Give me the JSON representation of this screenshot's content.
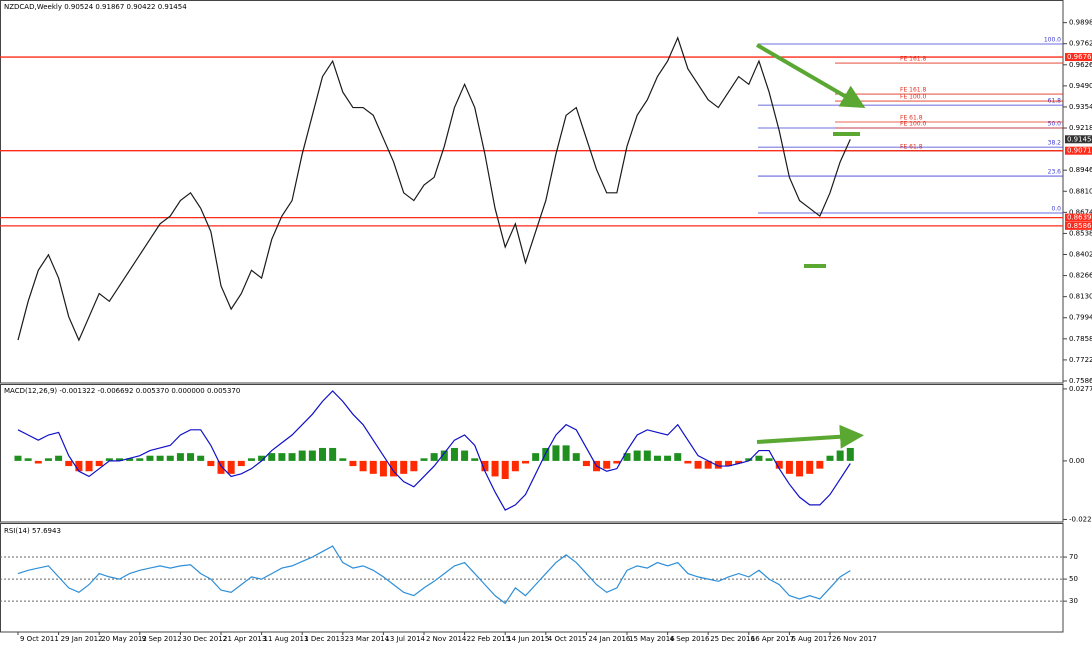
{
  "chart_data": [
    {
      "type": "line",
      "title": "NZDCAD,Weekly  0.90524 0.91867 0.90422 0.91454",
      "ylim": [
        0.7573,
        1.0044
      ],
      "yticks": [
        {
          "value": 0.9898,
          "label": "0.98980"
        },
        {
          "value": 0.9762,
          "label": "0.97620"
        },
        {
          "value": 0.9626,
          "label": "0.96260"
        },
        {
          "value": 0.949,
          "label": "0.94900"
        },
        {
          "value": 0.9354,
          "label": "0.93540"
        },
        {
          "value": 0.9218,
          "label": "0.92180"
        },
        {
          "value": 0.8946,
          "label": "0.89460"
        },
        {
          "value": 0.881,
          "label": "0.88100"
        },
        {
          "value": 0.8674,
          "label": "0.86740"
        },
        {
          "value": 0.8538,
          "label": "0.85380"
        },
        {
          "value": 0.8402,
          "label": "0.84020"
        },
        {
          "value": 0.8266,
          "label": "0.82660"
        },
        {
          "value": 0.813,
          "label": "0.81300"
        },
        {
          "value": 0.7994,
          "label": "0.79940"
        },
        {
          "value": 0.7858,
          "label": "0.78580"
        },
        {
          "value": 0.7722,
          "label": "0.77220"
        },
        {
          "value": 0.7586,
          "label": "0.75860"
        }
      ],
      "series": [
        {
          "color": "#1a1a1a",
          "values": [
            0.785,
            0.81,
            0.83,
            0.84,
            0.825,
            0.8,
            0.785,
            0.8,
            0.815,
            0.81,
            0.82,
            0.83,
            0.84,
            0.85,
            0.86,
            0.865,
            0.875,
            0.88,
            0.87,
            0.855,
            0.82,
            0.805,
            0.815,
            0.83,
            0.825,
            0.85,
            0.865,
            0.875,
            0.905,
            0.93,
            0.955,
            0.965,
            0.945,
            0.935,
            0.935,
            0.93,
            0.915,
            0.9,
            0.88,
            0.875,
            0.885,
            0.89,
            0.91,
            0.935,
            0.95,
            0.935,
            0.905,
            0.87,
            0.845,
            0.86,
            0.835,
            0.855,
            0.875,
            0.905,
            0.93,
            0.935,
            0.915,
            0.895,
            0.88,
            0.88,
            0.91,
            0.93,
            0.94,
            0.955,
            0.965,
            0.98,
            0.96,
            0.95,
            0.94,
            0.935,
            0.945,
            0.955,
            0.95,
            0.965,
            0.945,
            0.92,
            0.89,
            0.875,
            0.87,
            0.865,
            0.88,
            0.9,
            0.9145
          ]
        }
      ],
      "levels_color": "#ff2a1a",
      "levels": [
        {
          "value": 0.9676,
          "label": "0.96760"
        },
        {
          "value": 0.90717,
          "label": "0.90717"
        },
        {
          "value": 0.86399,
          "label": "0.86399"
        },
        {
          "value": 0.85868,
          "label": "0.85868"
        }
      ],
      "last_price": {
        "value": 0.91454,
        "label": "0.91454"
      },
      "fib_color": "#3b3bd6",
      "fib_levels": [
        {
          "value": 0.976,
          "label": "100.0"
        },
        {
          "value": 0.9366,
          "label": "61.8"
        },
        {
          "value": 0.9218,
          "label": "50.0"
        },
        {
          "value": 0.9095,
          "label": "38.2"
        },
        {
          "value": 0.8908,
          "label": "23.6"
        },
        {
          "value": 0.867,
          "label": "0.0"
        }
      ],
      "fe_color": "#e0301e",
      "fe_levels": [
        {
          "value": 0.9637,
          "label": "FE 161.8"
        },
        {
          "value": 0.9437,
          "label": "FE 161.8"
        },
        {
          "value": 0.9392,
          "label": "FE 100.0"
        },
        {
          "value": 0.9257,
          "label": "FE 61.8"
        },
        {
          "value": 0.9218,
          "label": "FE 100.0"
        },
        {
          "value": 0.907,
          "label": "FE 61.8"
        }
      ]
    },
    {
      "type": "bar",
      "title": "MACD(12,26,9) -0.001322 -0.006692 0.005370 0.000000 0.005370",
      "ylim": [
        -0.0236,
        0.0297
      ],
      "yticks": [
        0.027799,
        {
          "value": 0,
          "label": "0.00"
        },
        -0.022613
      ],
      "series": [
        {
          "color": "#1f8f1f",
          "negative_color": "#ff2a00",
          "values": [
            0.002,
            0.001,
            -0.001,
            0.001,
            0.002,
            -0.002,
            -0.004,
            -0.004,
            -0.002,
            0.001,
            0.001,
            0.001,
            0.001,
            0.002,
            0.002,
            0.002,
            0.003,
            0.003,
            0.002,
            -0.002,
            -0.005,
            -0.005,
            -0.002,
            0.001,
            0.002,
            0.003,
            0.003,
            0.003,
            0.004,
            0.004,
            0.005,
            0.005,
            0.001,
            -0.002,
            -0.004,
            -0.005,
            -0.006,
            -0.006,
            -0.005,
            -0.004,
            0.001,
            0.003,
            0.004,
            0.005,
            0.004,
            0.001,
            -0.004,
            -0.006,
            -0.007,
            -0.004,
            -0.001,
            0.003,
            0.005,
            0.006,
            0.006,
            0.003,
            -0.002,
            -0.004,
            -0.003,
            -0.001,
            0.003,
            0.004,
            0.004,
            0.002,
            0.002,
            0.003,
            -0.001,
            -0.003,
            -0.003,
            -0.003,
            -0.002,
            -0.001,
            0.001,
            0.002,
            0.001,
            -0.003,
            -0.005,
            -0.006,
            -0.005,
            -0.003,
            0.002,
            0.004,
            0.005
          ]
        },
        {
          "type": "line",
          "color": "#1010c8",
          "values": [
            0.012,
            0.01,
            0.008,
            0.01,
            0.011,
            0.002,
            -0.004,
            -0.006,
            -0.003,
            0,
            0,
            0.001,
            0.002,
            0.004,
            0.005,
            0.006,
            0.01,
            0.012,
            0.012,
            0.006,
            -0.002,
            -0.006,
            -0.005,
            -0.003,
            0,
            0.004,
            0.007,
            0.01,
            0.014,
            0.018,
            0.023,
            0.027,
            0.023,
            0.018,
            0.014,
            0.008,
            0.002,
            -0.004,
            -0.008,
            -0.01,
            -0.006,
            -0.002,
            0.003,
            0.008,
            0.01,
            0.006,
            -0.004,
            -0.012,
            -0.019,
            -0.017,
            -0.013,
            -0.005,
            0.003,
            0.01,
            0.014,
            0.012,
            0.005,
            -0.002,
            -0.004,
            -0.003,
            0.004,
            0.01,
            0.012,
            0.011,
            0.01,
            0.014,
            0.008,
            0.002,
            0,
            -0.002,
            -0.002,
            -0.001,
            0,
            0.004,
            0.004,
            -0.003,
            -0.009,
            -0.014,
            -0.017,
            -0.017,
            -0.013,
            -0.007,
            -0.001
          ]
        }
      ]
    },
    {
      "type": "line",
      "title": "RSI(14) 57.6943",
      "ylim": [
        2,
        100
      ],
      "yticks": [
        70,
        50,
        30
      ],
      "grid": true,
      "series": [
        {
          "color": "#2e8fd8",
          "values": [
            55,
            58,
            60,
            62,
            52,
            42,
            38,
            45,
            55,
            52,
            50,
            55,
            58,
            60,
            62,
            60,
            62,
            63,
            55,
            50,
            40,
            38,
            45,
            52,
            50,
            55,
            60,
            62,
            66,
            70,
            75,
            80,
            65,
            60,
            62,
            58,
            52,
            45,
            38,
            35,
            42,
            48,
            55,
            62,
            65,
            55,
            45,
            35,
            28,
            42,
            35,
            45,
            55,
            65,
            72,
            65,
            55,
            45,
            38,
            42,
            58,
            62,
            60,
            65,
            62,
            65,
            55,
            52,
            50,
            48,
            52,
            55,
            52,
            58,
            50,
            45,
            35,
            32,
            35,
            32,
            42,
            52,
            57.69
          ]
        }
      ],
      "categories": [
        "9 Oct 2011",
        null,
        null,
        null,
        "29 Jan 2012",
        null,
        null,
        null,
        "20 May 2012",
        null,
        null,
        null,
        "9 Sep 2012",
        null,
        null,
        null,
        "30 Dec 2012",
        null,
        null,
        null,
        "21 Apr 2013",
        null,
        null,
        null,
        "11 Aug 2013",
        null,
        null,
        null,
        "1 Dec 2013",
        null,
        null,
        null,
        "23 Mar 2014",
        null,
        null,
        null,
        "13 Jul 2014",
        null,
        null,
        null,
        "2 Nov 2014",
        null,
        null,
        null,
        "22 Feb 2015",
        null,
        null,
        null,
        "14 Jun 2015",
        null,
        null,
        null,
        "4 Oct 2015",
        null,
        null,
        null,
        "24 Jan 2016",
        null,
        null,
        null,
        "15 May 2016",
        null,
        null,
        null,
        "4 Sep 2016",
        null,
        null,
        null,
        "25 Dec 2016",
        null,
        null,
        null,
        "16 Apr 2017",
        null,
        null,
        null,
        "6 Aug 2017",
        null,
        null,
        null,
        "26 Nov 2017",
        null,
        null
      ]
    }
  ]
}
